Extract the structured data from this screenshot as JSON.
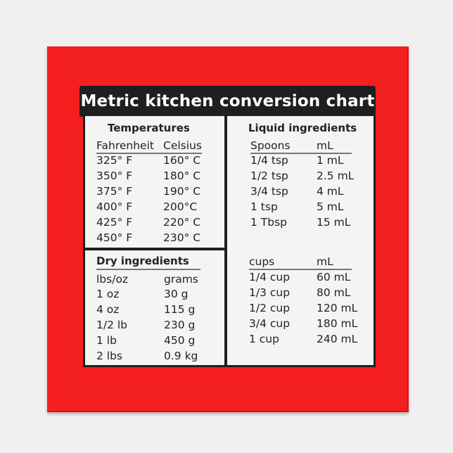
{
  "title": "Metric kitchen conversion chart",
  "colors": {
    "tile": "#f41f1f",
    "title_bar": "#1f1f1f",
    "panel": "#f4f4f4",
    "background": "#f0f0f0"
  },
  "temperatures": {
    "heading": "Temperatures",
    "columns": [
      "Fahrenheit",
      "Celsius"
    ],
    "rows": [
      [
        "325° F",
        "160° C"
      ],
      [
        "350° F",
        "180° C"
      ],
      [
        "375° F",
        "190° C"
      ],
      [
        "400° F",
        "200°C"
      ],
      [
        "425° F",
        "220° C"
      ],
      [
        "450° F",
        "230° C"
      ]
    ]
  },
  "dry": {
    "heading": "Dry ingredients",
    "columns": [
      "lbs/oz",
      "grams"
    ],
    "rows": [
      [
        "1 oz",
        "30 g"
      ],
      [
        "4 oz",
        "115 g"
      ],
      [
        "1/2 lb",
        "230 g"
      ],
      [
        "1 lb",
        "450 g"
      ],
      [
        "2 lbs",
        "0.9 kg"
      ]
    ]
  },
  "liquid": {
    "heading": "Liquid ingredients",
    "spoons": {
      "columns": [
        "Spoons",
        "mL"
      ],
      "rows": [
        [
          "1/4 tsp",
          "1 mL"
        ],
        [
          "1/2 tsp",
          "2.5 mL"
        ],
        [
          "3/4 tsp",
          "4 mL"
        ],
        [
          "1 tsp",
          "5 mL"
        ],
        [
          "1 Tbsp",
          "15 mL"
        ]
      ]
    },
    "cups": {
      "columns": [
        "cups",
        "mL"
      ],
      "rows": [
        [
          "1/4 cup",
          "60 mL"
        ],
        [
          "1/3 cup",
          "80 mL"
        ],
        [
          "1/2 cup",
          "120 mL"
        ],
        [
          "3/4 cup",
          "180 mL"
        ],
        [
          "1 cup",
          "240 mL"
        ]
      ]
    }
  }
}
